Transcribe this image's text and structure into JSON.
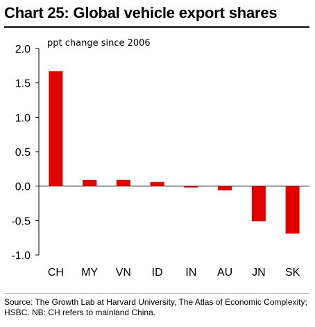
{
  "title": "Chart 25: Global vehicle export shares",
  "source": "Source: The Growth Lab at Harvard University, The Atlas of Economic Complexity; HSBC. NB: CH refers to mainland China.",
  "chart_data": {
    "type": "bar",
    "title": "Chart 25: Global vehicle export shares",
    "annotation": "ppt change since 2006",
    "xlabel": "",
    "ylabel": "",
    "categories": [
      "CH",
      "MY",
      "VN",
      "ID",
      "IN",
      "AU",
      "JN",
      "SK"
    ],
    "values": [
      1.67,
      0.09,
      0.09,
      0.06,
      -0.02,
      -0.06,
      -0.51,
      -0.69
    ],
    "ylim": [
      -1.0,
      2.0
    ],
    "yticks": [
      "2.0",
      "1.5",
      "1.0",
      "0.5",
      "0.0",
      "-0.5",
      "-1.0"
    ],
    "ytick_values": [
      2.0,
      1.5,
      1.0,
      0.5,
      0.0,
      -0.5,
      -1.0
    ],
    "bar_color": "#e00000",
    "grid": false,
    "legend": "none"
  }
}
